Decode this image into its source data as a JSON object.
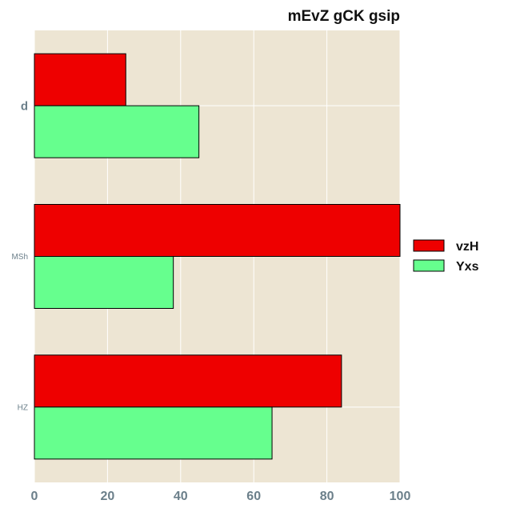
{
  "chart_data": {
    "type": "bar",
    "orientation": "horizontal",
    "title": "mEvZ gCK gsip",
    "xlabel": "",
    "ylabel": "",
    "categories": [
      "d",
      "MSh",
      "HZ"
    ],
    "category_label_sizes": [
      "large",
      "small",
      "small"
    ],
    "series": [
      {
        "name": "vzH",
        "color": "#ee0000",
        "values": [
          25,
          100,
          84
        ]
      },
      {
        "name": "Yxs",
        "color": "#66ff8e",
        "values": [
          45,
          38,
          65
        ]
      }
    ],
    "xlim": [
      0,
      100
    ],
    "xticks": [
      "0",
      "20",
      "40",
      "60",
      "80",
      "100"
    ],
    "grid": true,
    "legend_position": "right",
    "plot_background": "#ede5d3",
    "grid_color": "#ffffff"
  }
}
